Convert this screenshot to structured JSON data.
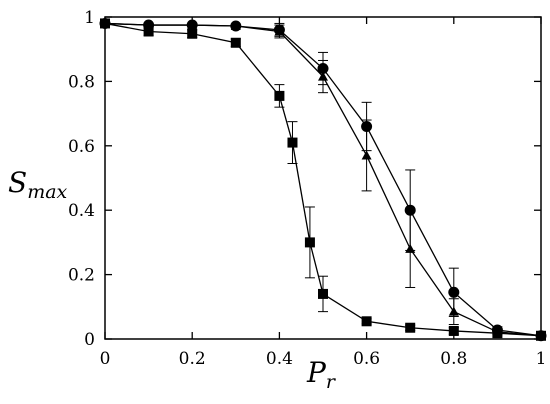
{
  "chart_data": {
    "type": "line",
    "title": "",
    "xlabel": {
      "main": "P",
      "sub": "r"
    },
    "ylabel": {
      "main": "S",
      "sub": "max"
    },
    "xlim": [
      0,
      1
    ],
    "ylim": [
      0,
      1
    ],
    "xticks": [
      0,
      0.2,
      0.4,
      0.6,
      0.8,
      1
    ],
    "yticks": [
      0,
      0.2,
      0.4,
      0.6,
      0.8,
      1
    ],
    "xtick_labels": [
      "0",
      "0.2",
      "0.4",
      "0.6",
      "0.8",
      "1"
    ],
    "ytick_labels": [
      "0",
      "0.2",
      "0.4",
      "0.6",
      "0.8",
      "1"
    ],
    "grid": false,
    "legend": "none",
    "series": [
      {
        "marker": "square",
        "x": [
          0.0,
          0.1,
          0.2,
          0.3,
          0.4,
          0.43,
          0.47,
          0.5,
          0.6,
          0.7,
          0.8,
          0.9,
          1.0
        ],
        "y": [
          0.98,
          0.955,
          0.948,
          0.92,
          0.755,
          0.61,
          0.3,
          0.14,
          0.055,
          0.035,
          0.025,
          0.018,
          0.01
        ],
        "yerr": [
          0.005,
          0.012,
          0.012,
          0.012,
          0.035,
          0.065,
          0.11,
          0.055,
          0.008,
          0.008,
          0.01,
          0.005,
          0.003
        ]
      },
      {
        "marker": "circle",
        "x": [
          0.0,
          0.1,
          0.2,
          0.3,
          0.4,
          0.5,
          0.6,
          0.7,
          0.8,
          0.9,
          1.0
        ],
        "y": [
          0.98,
          0.975,
          0.975,
          0.972,
          0.96,
          0.84,
          0.66,
          0.4,
          0.145,
          0.028,
          0.01
        ],
        "yerr": [
          0.003,
          0.004,
          0.004,
          0.005,
          0.02,
          0.05,
          0.075,
          0.125,
          0.075,
          0.01,
          0.003
        ]
      },
      {
        "marker": "triangle",
        "x": [
          0.0,
          0.1,
          0.2,
          0.3,
          0.4,
          0.5,
          0.6,
          0.7,
          0.8,
          0.9,
          1.0
        ],
        "y": [
          0.98,
          0.975,
          0.975,
          0.972,
          0.955,
          0.815,
          0.57,
          0.28,
          0.085,
          0.022,
          0.01
        ],
        "yerr": [
          0.003,
          0.004,
          0.004,
          0.005,
          0.02,
          0.05,
          0.11,
          0.12,
          0.04,
          0.008,
          0.003
        ]
      }
    ]
  }
}
